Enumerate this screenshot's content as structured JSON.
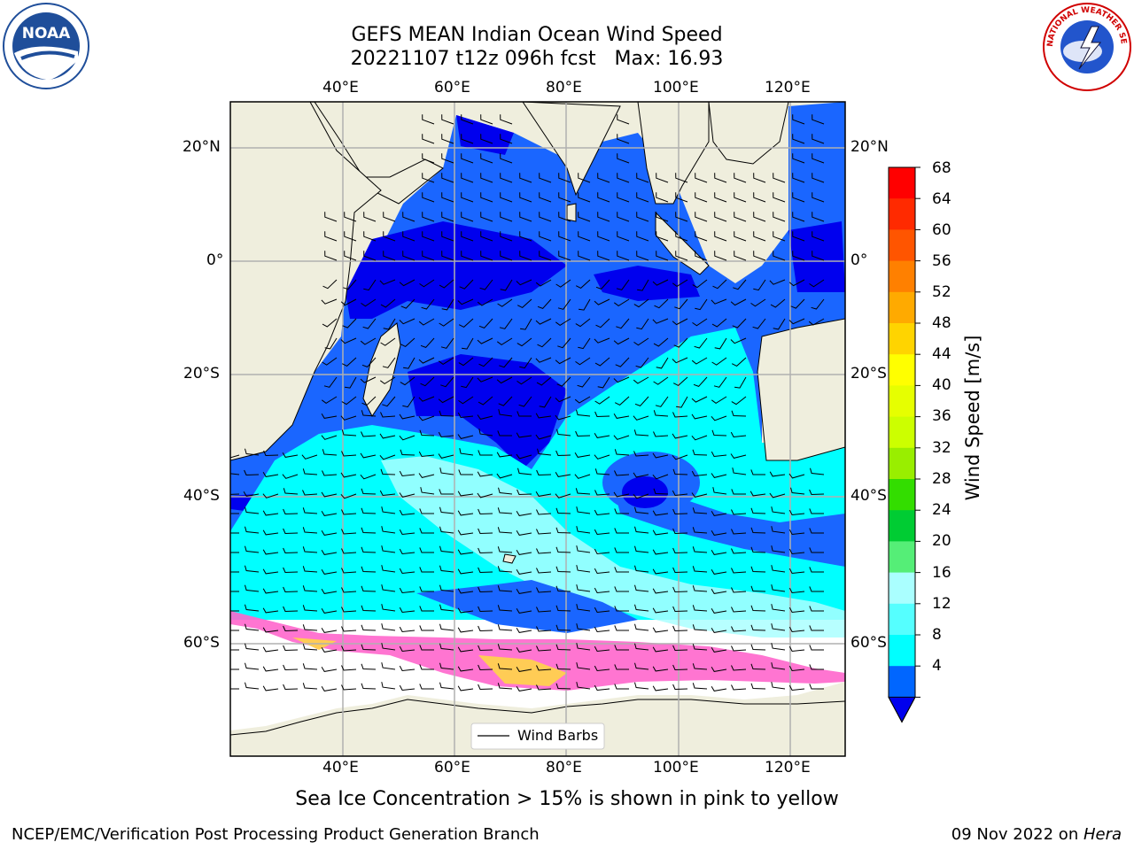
{
  "title": {
    "line1": "GEFS MEAN Indian Ocean Wind Speed",
    "line2": "20221107 t12z 096h fcst   Max: 16.93"
  },
  "axes": {
    "lon_ticks": [
      "40°E",
      "60°E",
      "80°E",
      "100°E",
      "120°E"
    ],
    "lat_ticks": [
      "20°N",
      "0°",
      "20°S",
      "40°S",
      "60°S"
    ]
  },
  "legend": {
    "label": "Wind Barbs"
  },
  "colorbar": {
    "label": "Wind Speed [m/s]",
    "ticks": [
      "68",
      "64",
      "60",
      "56",
      "52",
      "48",
      "44",
      "40",
      "36",
      "32",
      "28",
      "24",
      "20",
      "16",
      "12",
      "8",
      "4"
    ],
    "colors": [
      "#ff0000",
      "#ff2a00",
      "#ff5500",
      "#ff8000",
      "#ffaa00",
      "#ffd400",
      "#ffff00",
      "#e6ff00",
      "#ccff00",
      "#99ee00",
      "#33dd00",
      "#00cc33",
      "#55ee77",
      "#aaffff",
      "#55ffff",
      "#00ffff",
      "#0066ff"
    ],
    "under_color": "#0000ee"
  },
  "caption": "Sea Ice Concentration > 15% is shown in pink to yellow",
  "footer": {
    "left": "NCEP/EMC/Verification Post Processing Product Generation Branch",
    "right_date": "09 Nov 2022 on ",
    "right_host": "Hera"
  },
  "logos": {
    "left": "NOAA",
    "right": "NATIONAL WEATHER SERVICE"
  },
  "colors": {
    "land": "#efeedd",
    "deep_blue": "#0000ee",
    "mid_blue": "#1a66ff",
    "cyan": "#00ffff",
    "light_cyan": "#aaffff",
    "ice_pink": "#ff66cc",
    "ice_yellow": "#ffcc55"
  }
}
